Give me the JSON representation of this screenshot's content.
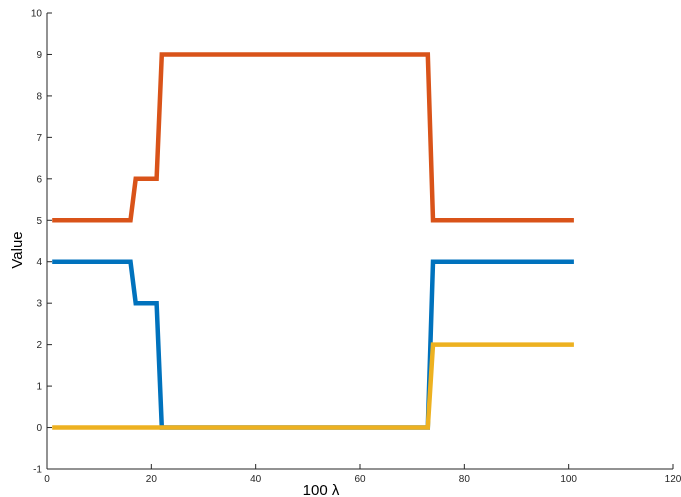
{
  "chart_data": {
    "type": "line",
    "title": "",
    "xlabel": "100 λ",
    "ylabel": "Value",
    "xlim": [
      0,
      120
    ],
    "ylim": [
      -1,
      10
    ],
    "xticks": [
      0,
      20,
      40,
      60,
      80,
      100,
      120
    ],
    "yticks": [
      -1,
      0,
      1,
      2,
      3,
      4,
      5,
      6,
      7,
      8,
      9,
      10
    ],
    "xtick_labels": [
      "0",
      "20",
      "40",
      "60",
      "80",
      "100",
      "120"
    ],
    "ytick_labels": [
      "-1",
      "0",
      "1",
      "2",
      "3",
      "4",
      "5",
      "6",
      "7",
      "8",
      "9",
      "10"
    ],
    "grid": false,
    "legend": "none",
    "series": [
      {
        "color": "#0072BD",
        "x": [
          1,
          16,
          17,
          21,
          22,
          73,
          74,
          101
        ],
        "y": [
          4,
          4,
          3,
          3,
          0,
          0,
          4,
          4
        ]
      },
      {
        "color": "#D95319",
        "x": [
          1,
          16,
          17,
          21,
          22,
          73,
          74,
          101
        ],
        "y": [
          5,
          5,
          6,
          6,
          9,
          9,
          5,
          5
        ]
      },
      {
        "color": "#EDB120",
        "x": [
          1,
          73,
          74,
          101
        ],
        "y": [
          0,
          0,
          2,
          2
        ]
      }
    ]
  }
}
